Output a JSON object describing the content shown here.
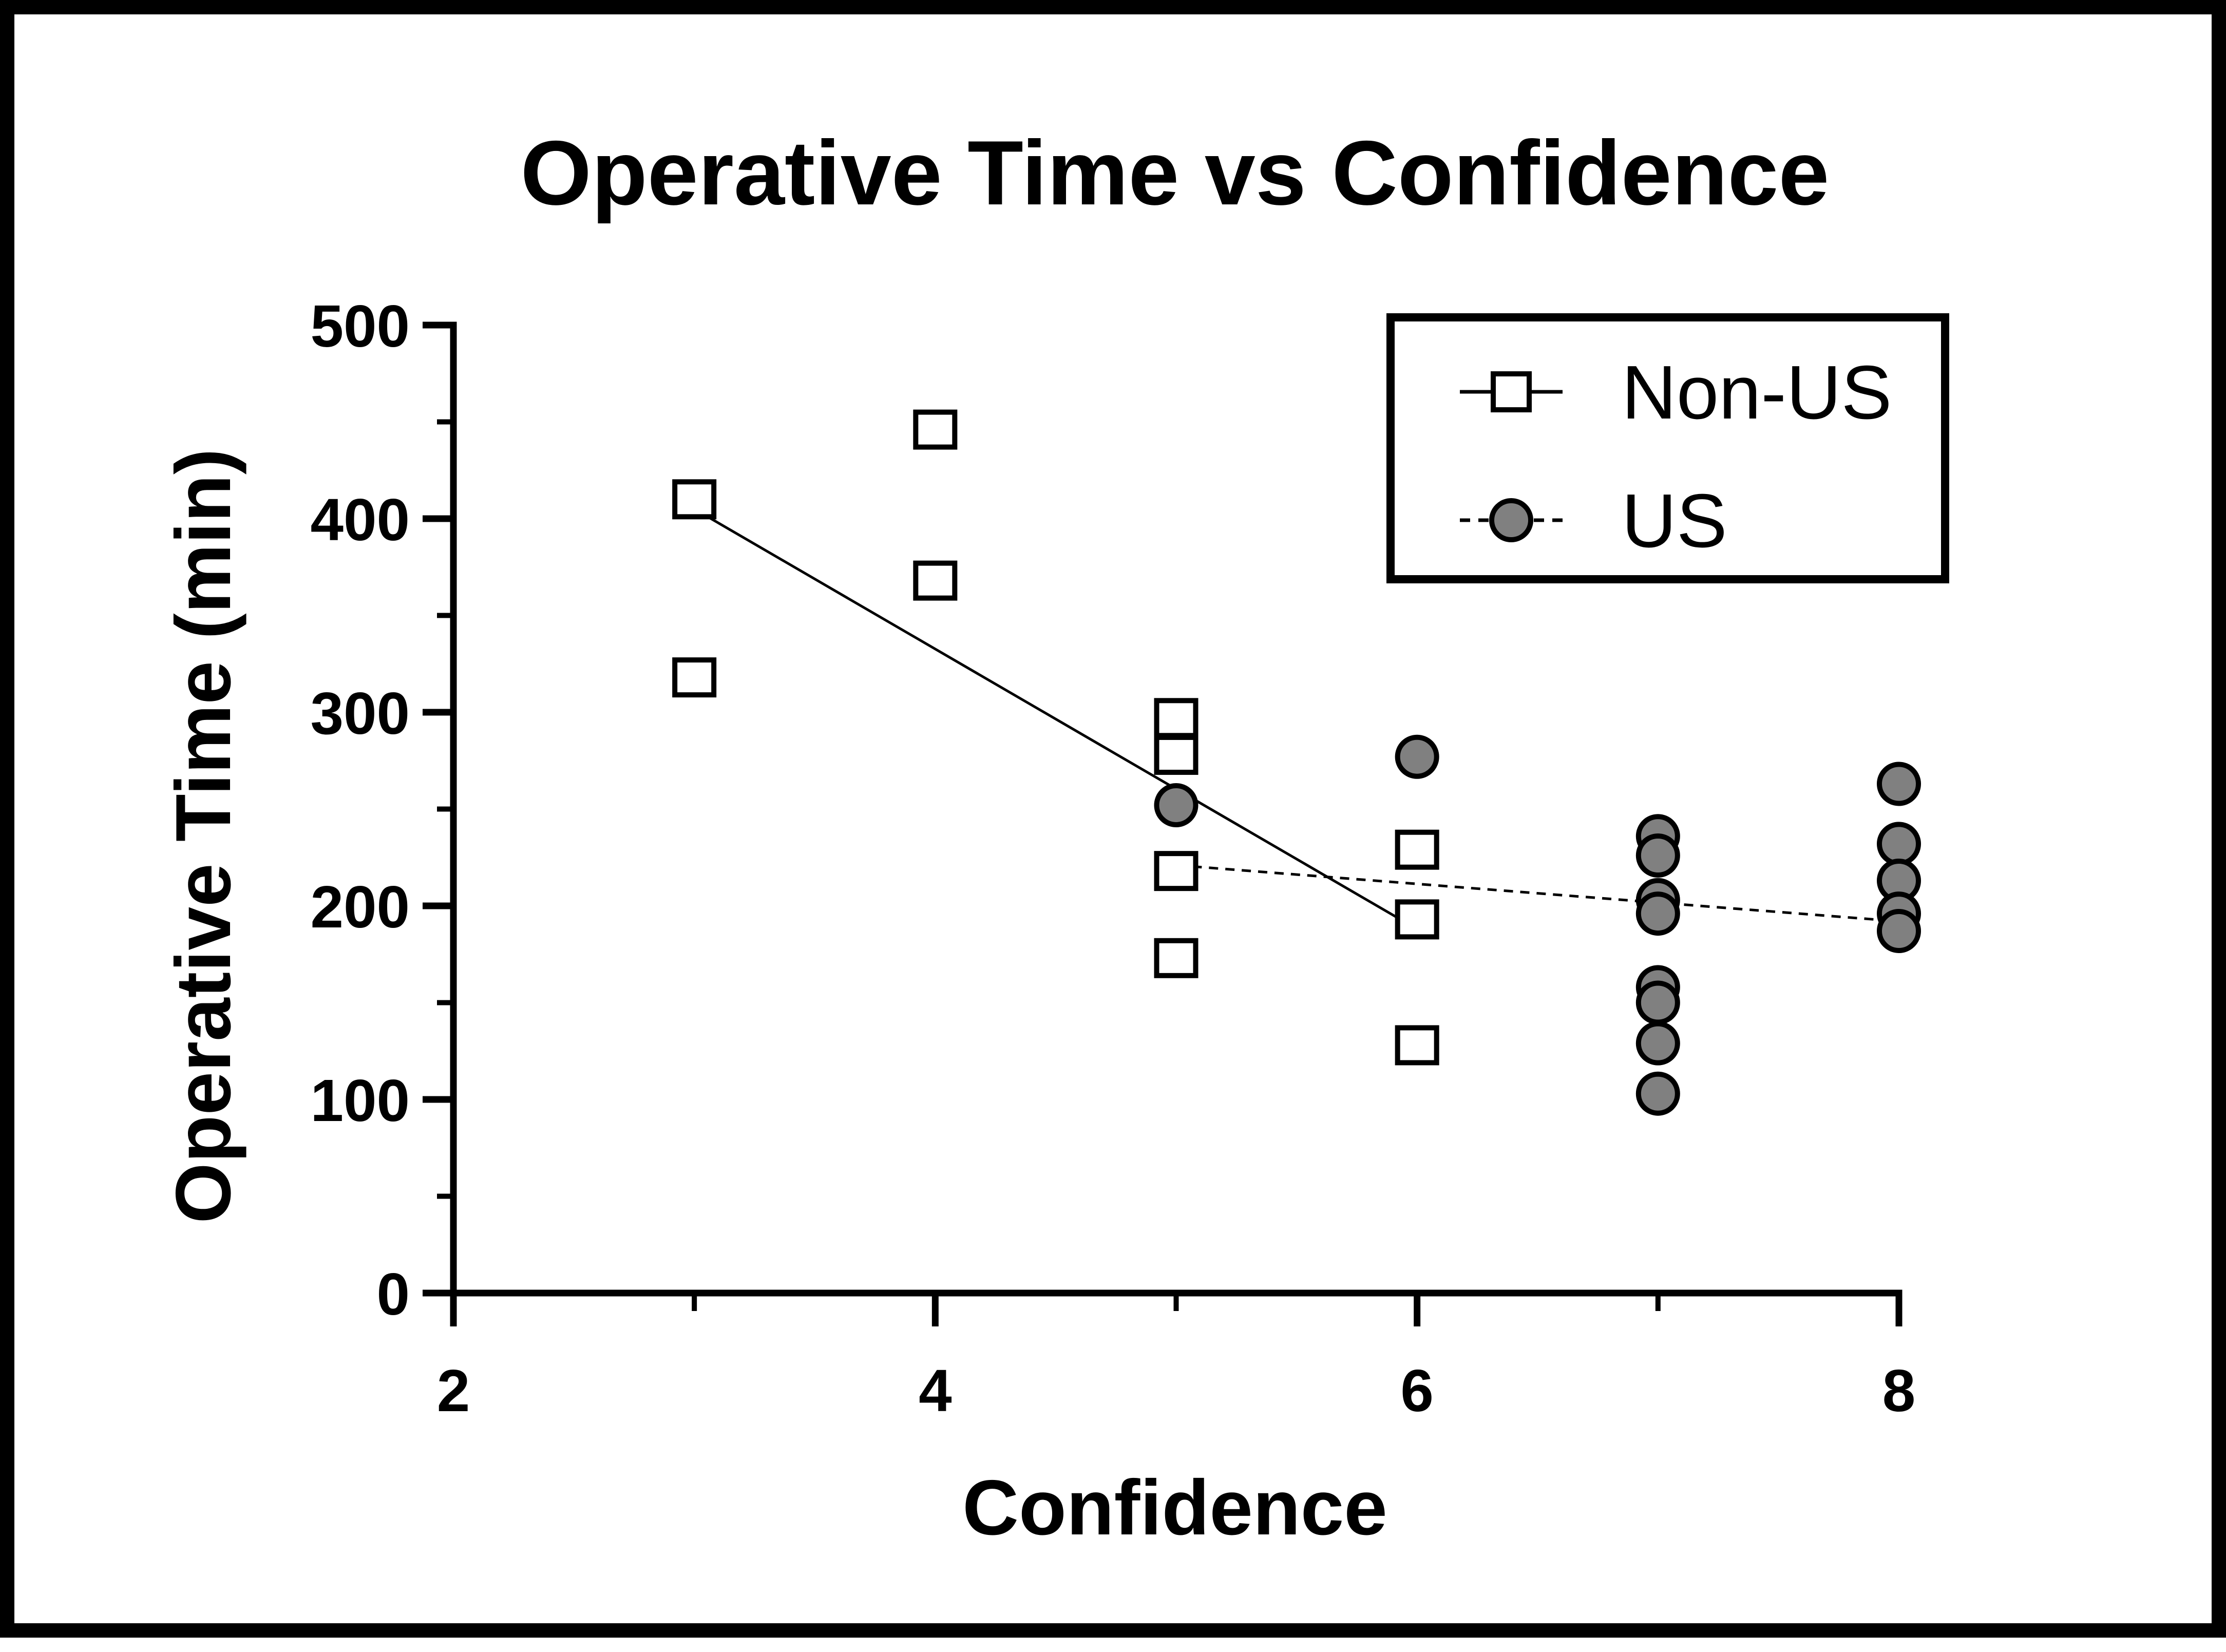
{
  "chart_data": {
    "type": "scatter",
    "title": "Operative Time vs Confidence",
    "xlabel": "Confidence",
    "ylabel": "Operative Time (min)",
    "xlim": [
      2,
      8
    ],
    "ylim": [
      0,
      500
    ],
    "xticks": [
      2,
      4,
      6,
      8
    ],
    "xminor": [
      3,
      5,
      7
    ],
    "yticks": [
      0,
      100,
      200,
      300,
      400,
      500
    ],
    "yminor": [
      50,
      150,
      250,
      350,
      450
    ],
    "grid": false,
    "legend": "top-right",
    "series": [
      {
        "name": "Non-US",
        "marker": "square-open",
        "line": "solid",
        "color": "#000000",
        "points": [
          [
            3,
            410
          ],
          [
            3,
            318
          ],
          [
            4,
            446
          ],
          [
            4,
            368
          ],
          [
            5,
            297
          ],
          [
            5,
            278
          ],
          [
            5,
            218
          ],
          [
            5,
            173
          ],
          [
            6,
            229
          ],
          [
            6,
            193
          ],
          [
            6,
            128
          ]
        ],
        "fit": [
          [
            3,
            405
          ],
          [
            6,
            188
          ]
        ]
      },
      {
        "name": "US",
        "marker": "circle-filled",
        "line": "dashed",
        "color": "#808080",
        "points": [
          [
            5,
            252
          ],
          [
            6,
            277
          ],
          [
            7,
            236
          ],
          [
            7,
            226
          ],
          [
            7,
            203
          ],
          [
            7,
            196
          ],
          [
            7,
            158
          ],
          [
            7,
            150
          ],
          [
            7,
            129
          ],
          [
            7,
            103
          ],
          [
            8,
            263
          ],
          [
            8,
            232
          ],
          [
            8,
            213
          ],
          [
            8,
            196
          ],
          [
            8,
            187
          ]
        ],
        "fit": [
          [
            5,
            221
          ],
          [
            8,
            192
          ]
        ]
      }
    ]
  }
}
